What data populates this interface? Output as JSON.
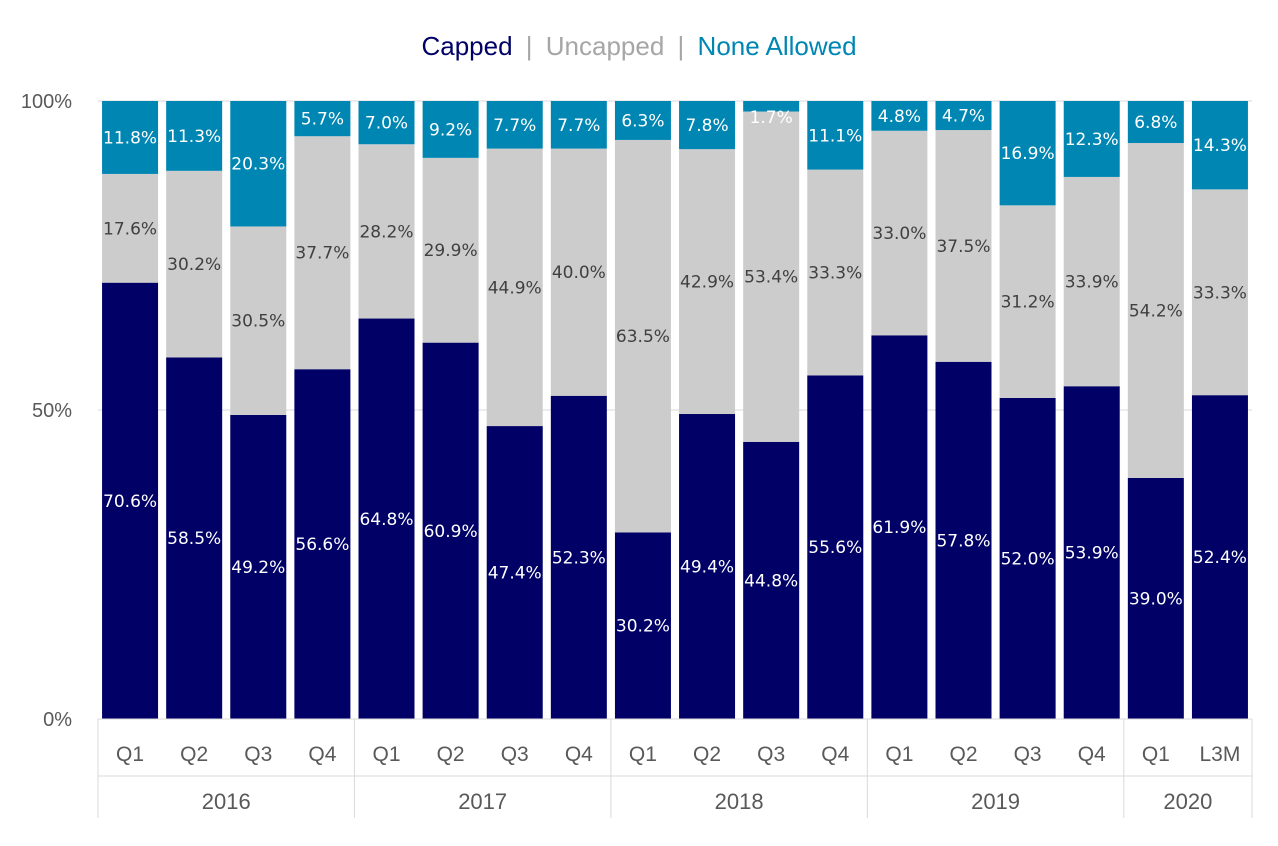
{
  "legend": {
    "items": [
      {
        "label": "Capped",
        "color": "#000066"
      },
      {
        "label": "Uncapped",
        "color": "#A6A6A6"
      },
      {
        "label": "None Allowed",
        "color": "#0086B3"
      }
    ],
    "separator": "|",
    "separator_color": "#A6A6A6"
  },
  "chart_data": {
    "type": "bar",
    "stacked": true,
    "percent_stacked": true,
    "legend_position": "top",
    "grid": true,
    "ylim": [
      0,
      100
    ],
    "yticks": [
      "0%",
      "50%",
      "100%"
    ],
    "categories": [
      "Q1",
      "Q2",
      "Q3",
      "Q4",
      "Q1",
      "Q2",
      "Q3",
      "Q4",
      "Q1",
      "Q2",
      "Q3",
      "Q4",
      "Q1",
      "Q2",
      "Q3",
      "Q4",
      "Q1",
      "L3M"
    ],
    "groups": [
      {
        "label": "2016",
        "count": 4
      },
      {
        "label": "2017",
        "count": 4
      },
      {
        "label": "2018",
        "count": 4
      },
      {
        "label": "2019",
        "count": 4
      },
      {
        "label": "2020",
        "count": 2
      }
    ],
    "series": [
      {
        "name": "Capped",
        "color": "#000066",
        "label_color": "#ffffff",
        "values": [
          70.6,
          58.5,
          49.2,
          56.6,
          64.8,
          60.9,
          47.4,
          52.3,
          30.2,
          49.4,
          44.8,
          55.6,
          61.9,
          57.8,
          52.0,
          53.9,
          39.0,
          52.4
        ],
        "labels": [
          "70.6%",
          "58.5%",
          "49.2%",
          "56.6%",
          "64.8%",
          "60.9%",
          "47.4%",
          "52.3%",
          "30.2%",
          "49.4%",
          "44.8%",
          "55.6%",
          "61.9%",
          "57.8%",
          "52.0%",
          "53.9%",
          "39.0%",
          "52.4%"
        ]
      },
      {
        "name": "Uncapped",
        "color": "#CCCCCC",
        "label_color": "#404040",
        "values": [
          17.6,
          30.2,
          30.5,
          37.7,
          28.2,
          29.9,
          44.9,
          40.0,
          63.5,
          42.9,
          53.4,
          33.3,
          33.0,
          37.5,
          31.2,
          33.9,
          54.2,
          33.3
        ],
        "labels": [
          "17.6%",
          "30.2%",
          "30.5%",
          "37.7%",
          "28.2%",
          "29.9%",
          "44.9%",
          "40.0%",
          "63.5%",
          "42.9%",
          "53.4%",
          "33.3%",
          "33.0%",
          "37.5%",
          "31.2%",
          "33.9%",
          "54.2%",
          "33.3%"
        ]
      },
      {
        "name": "None Allowed",
        "color": "#0086B3",
        "label_color": "#ffffff",
        "values": [
          11.8,
          11.3,
          20.3,
          5.7,
          7.0,
          9.2,
          7.7,
          7.7,
          6.3,
          7.8,
          1.7,
          11.1,
          4.8,
          4.7,
          16.9,
          12.3,
          6.8,
          14.3
        ],
        "labels": [
          "11.8%",
          "11.3%",
          "20.3%",
          "5.7%",
          "7.0%",
          "9.2%",
          "7.7%",
          "7.7%",
          "6.3%",
          "7.8%",
          "1.7%",
          "11.1%",
          "4.8%",
          "4.7%",
          "16.9%",
          "12.3%",
          "6.8%",
          "14.3%"
        ]
      }
    ]
  }
}
